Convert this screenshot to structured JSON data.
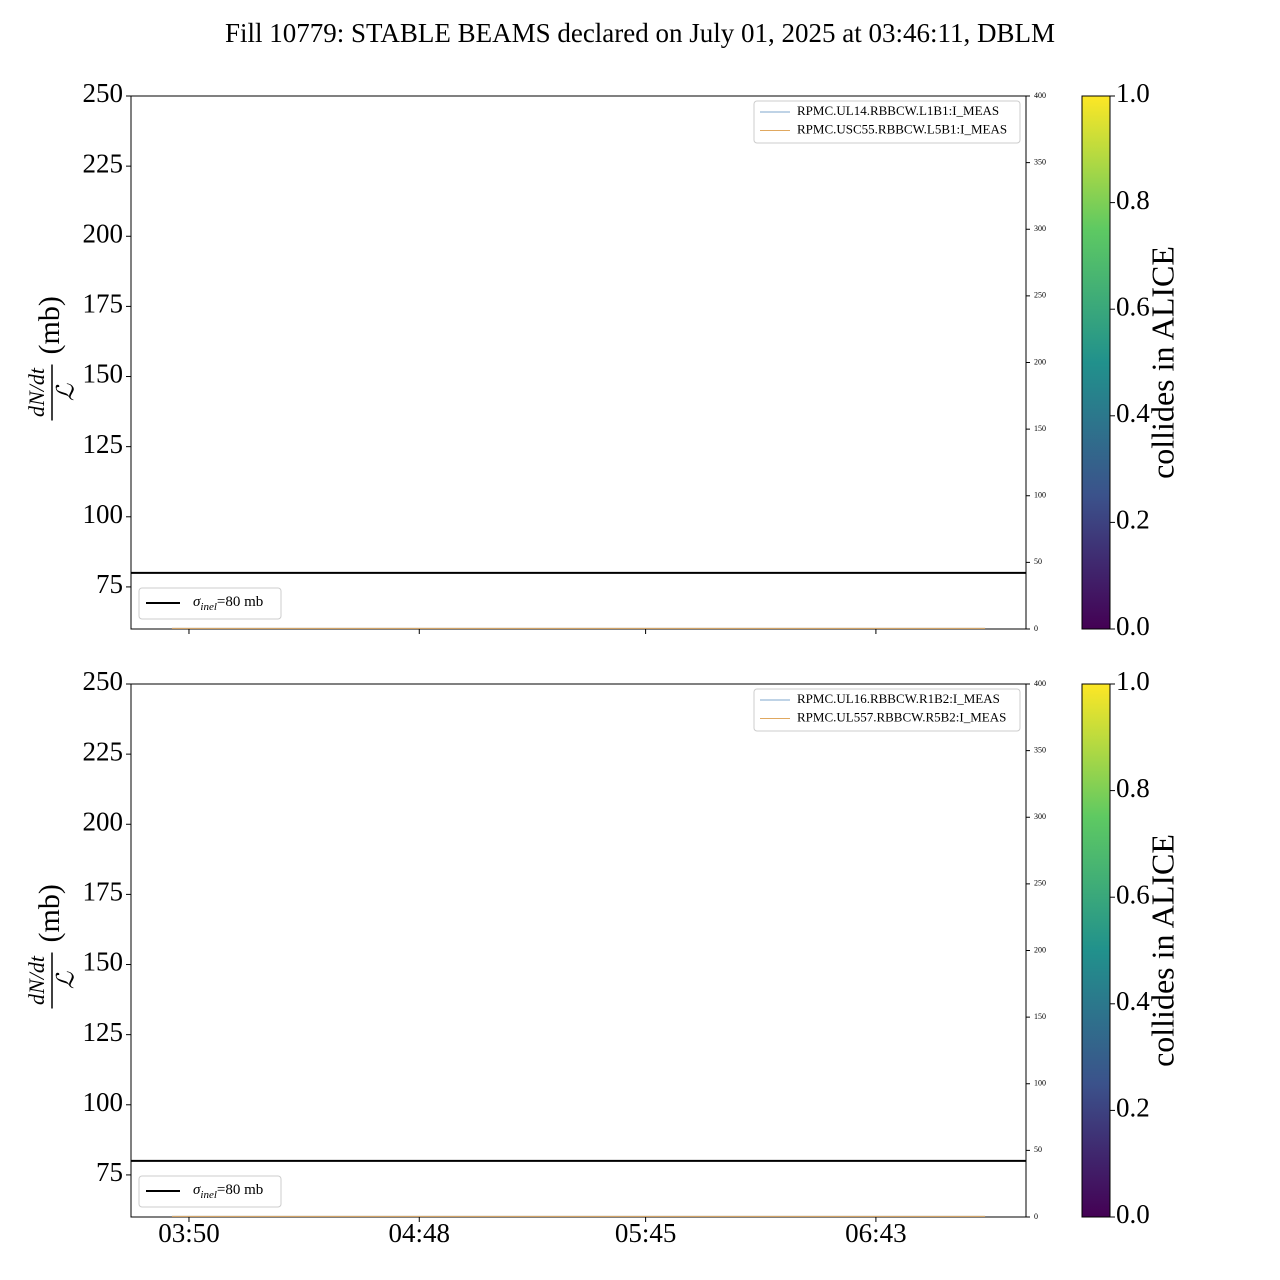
{
  "chart_data": [
    {
      "type": "line",
      "title": "Fill 10779: STABLE BEAMS declared on July 01, 2025 at 03:46:11, DBLM",
      "ylabel_numerator": "dN/dt",
      "ylabel_denominator": "ℒ",
      "ylabel_unit": "(mb)",
      "xlim": [
        215.4,
        440.8
      ],
      "xticks": [
        {
          "value": 230,
          "label": "03:50"
        },
        {
          "value": 288,
          "label": "04:48"
        },
        {
          "value": 345,
          "label": "05:45"
        },
        {
          "value": 403,
          "label": "06:43"
        }
      ],
      "show_xtick_labels": false,
      "ylim": [
        60,
        250
      ],
      "yticks": [
        75,
        100,
        125,
        150,
        175,
        200,
        225,
        250
      ],
      "y2lim": [
        0,
        400
      ],
      "y2ticks": [
        0,
        50,
        100,
        150,
        200,
        250,
        300,
        350,
        400
      ],
      "hline": {
        "value": 80,
        "color": "#000000",
        "label_symbol": "σ",
        "label_sub": "inel",
        "label_rest": "=80 mb"
      },
      "legend": "upper right",
      "series": [
        {
          "name": "RPMC.UL14.RBBCW.L1B1:I_MEAS",
          "color": "#7fa7cc",
          "axis": "y2",
          "x": [
            225.7,
            430.5
          ],
          "values": [
            0.5,
            0.5
          ]
        },
        {
          "name": "RPMC.USC55.RBBCW.L5B1:I_MEAS",
          "color": "#e0a860",
          "axis": "y2",
          "x": [
            225.7,
            430.5
          ],
          "values": [
            0.5,
            0.5
          ]
        }
      ],
      "colorbar": {
        "label": "collides in ALICE",
        "lim": [
          0,
          1
        ],
        "ticks": [
          {
            "value": 0,
            "label": "0.0"
          },
          {
            "value": 0.2,
            "label": "0.2"
          },
          {
            "value": 0.4,
            "label": "0.4"
          },
          {
            "value": 0.6,
            "label": "0.6"
          },
          {
            "value": 0.8,
            "label": "0.8"
          },
          {
            "value": 1,
            "label": "1.0"
          }
        ],
        "colors": [
          "#440154",
          "#3b528b",
          "#21918c",
          "#5ec962",
          "#fde725"
        ]
      }
    },
    {
      "type": "line",
      "ylabel_numerator": "dN/dt",
      "ylabel_denominator": "ℒ",
      "ylabel_unit": "(mb)",
      "xlim": [
        215.4,
        440.8
      ],
      "xticks": [
        {
          "value": 230,
          "label": "03:50"
        },
        {
          "value": 288,
          "label": "04:48"
        },
        {
          "value": 345,
          "label": "05:45"
        },
        {
          "value": 403,
          "label": "06:43"
        }
      ],
      "show_xtick_labels": true,
      "ylim": [
        60,
        250
      ],
      "yticks": [
        75,
        100,
        125,
        150,
        175,
        200,
        225,
        250
      ],
      "y2lim": [
        0,
        400
      ],
      "y2ticks": [
        0,
        50,
        100,
        150,
        200,
        250,
        300,
        350,
        400
      ],
      "hline": {
        "value": 80,
        "color": "#000000",
        "label_symbol": "σ",
        "label_sub": "inel",
        "label_rest": "=80 mb"
      },
      "legend": "upper right",
      "series": [
        {
          "name": "RPMC.UL16.RBBCW.R1B2:I_MEAS",
          "color": "#7fa7cc",
          "axis": "y2",
          "x": [
            225.7,
            430.5
          ],
          "values": [
            0.5,
            0.5
          ]
        },
        {
          "name": "RPMC.UL557.RBBCW.R5B2:I_MEAS",
          "color": "#e0a860",
          "axis": "y2",
          "x": [
            225.7,
            430.5
          ],
          "values": [
            0.5,
            0.5
          ]
        }
      ],
      "colorbar": {
        "label": "collides in ALICE",
        "lim": [
          0,
          1
        ],
        "ticks": [
          {
            "value": 0,
            "label": "0.0"
          },
          {
            "value": 0.2,
            "label": "0.2"
          },
          {
            "value": 0.4,
            "label": "0.4"
          },
          {
            "value": 0.6,
            "label": "0.6"
          },
          {
            "value": 0.8,
            "label": "0.8"
          },
          {
            "value": 1,
            "label": "1.0"
          }
        ],
        "colors": [
          "#440154",
          "#3b528b",
          "#21918c",
          "#5ec962",
          "#fde725"
        ]
      }
    }
  ]
}
